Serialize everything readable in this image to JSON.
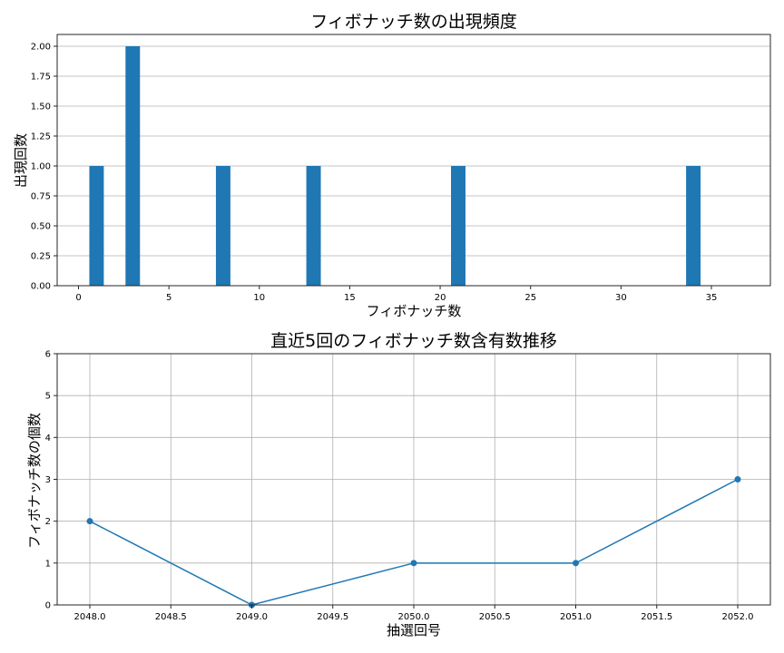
{
  "chart_data": [
    {
      "type": "bar",
      "title": "フィボナッチ数の出現頻度",
      "xlabel": "フィボナッチ数",
      "ylabel": "出現回数",
      "categories": [
        1,
        3,
        8,
        13,
        21,
        34
      ],
      "values": [
        1,
        2,
        1,
        1,
        1,
        1
      ],
      "bar_color": "#1f77b4",
      "bar_width": 0.8,
      "xlim": [
        -1.2,
        36.2
      ],
      "ylim": [
        0,
        2.1
      ],
      "xticks": [
        0,
        5,
        10,
        15,
        20,
        25,
        30,
        35
      ],
      "xtick_labels": [
        "0",
        "5",
        "10",
        "15",
        "20",
        "25",
        "30",
        "35"
      ],
      "yticks": [
        0,
        0.25,
        0.5,
        0.75,
        1.0,
        1.25,
        1.5,
        1.75,
        2.0
      ],
      "ytick_labels": [
        "0.00",
        "0.25",
        "0.50",
        "0.75",
        "1.00",
        "1.25",
        "1.50",
        "1.75",
        "2.00"
      ],
      "grid": "y"
    },
    {
      "type": "line",
      "title": "直近5回のフィボナッチ数含有数推移",
      "xlabel": "抽選回号",
      "ylabel": "フィボナッチ数の個数",
      "x": [
        2048,
        2049,
        2050,
        2051,
        2052
      ],
      "values": [
        2,
        0,
        1,
        1,
        3
      ],
      "line_color": "#1f77b4",
      "marker": "circle",
      "xlim": [
        1947.8,
        2052.2
      ],
      "ylim": [
        0,
        6
      ],
      "xticks": [
        2048.0,
        2048.5,
        2049.0,
        2049.5,
        2050.0,
        2050.5,
        2051.0,
        2051.5,
        2052.0
      ],
      "xtick_labels": [
        "2048.0",
        "2048.5",
        "2049.0",
        "2049.5",
        "2050.0",
        "2050.5",
        "2051.0",
        "2051.5",
        "2052.0"
      ],
      "yticks": [
        0,
        1,
        2,
        3,
        4,
        5,
        6
      ],
      "ytick_labels": [
        "0",
        "1",
        "2",
        "3",
        "4",
        "5",
        "6"
      ],
      "grid": "both"
    }
  ]
}
